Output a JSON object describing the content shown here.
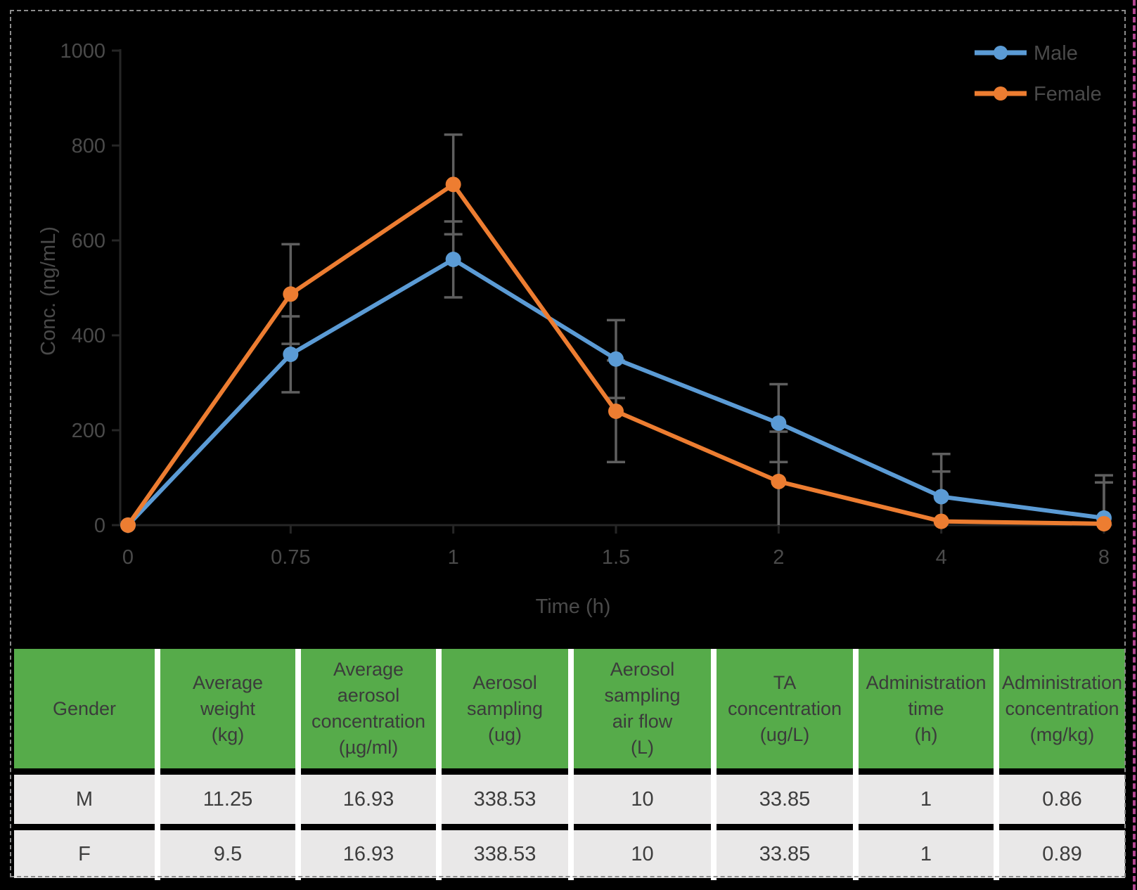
{
  "chart_data": {
    "type": "line",
    "title": "",
    "xlabel": "Time (h)",
    "ylabel": "Conc. (ng/mL)",
    "categories": [
      "0",
      "0.75",
      "1",
      "1.5",
      "2",
      "4",
      "8"
    ],
    "series": [
      {
        "name": "Male",
        "color": "#5B9BD5",
        "values": [
          0,
          360,
          560,
          350,
          215,
          60,
          15
        ],
        "error": [
          0,
          80,
          80,
          82,
          82,
          90,
          90
        ]
      },
      {
        "name": "Female",
        "color": "#ED7D31",
        "values": [
          0,
          487,
          718,
          240,
          92,
          8,
          3
        ],
        "error": [
          0,
          105,
          105,
          107,
          105,
          105,
          87
        ]
      }
    ],
    "ylim": [
      0,
      1000
    ],
    "yticks": [
      0,
      200,
      400,
      600,
      800,
      1000
    ],
    "grid": false,
    "legend_position": "top-right",
    "error_bar_color": "#5f5f5f",
    "axis_color": "#262626"
  },
  "table": {
    "headers": [
      "Gender",
      "Average\nweight\n(kg)",
      "Average\naerosol\nconcentration\n(µg/ml)",
      "Aerosol\nsampling\n(ug)",
      "Aerosol\nsampling\nair flow\n(L)",
      "TA\nconcentration\n(ug/L)",
      "Administration\ntime\n(h)",
      "Administration\nconcentration\n(mg/kg)"
    ],
    "rows": [
      [
        "M",
        "11.25",
        "16.93",
        "338.53",
        "10",
        "33.85",
        "1",
        "0.86"
      ],
      [
        "F",
        "9.5",
        "16.93",
        "338.53",
        "10",
        "33.85",
        "1",
        "0.89"
      ]
    ],
    "header_bg": "#56AB4A",
    "row_bg": "#E9E8E8"
  }
}
